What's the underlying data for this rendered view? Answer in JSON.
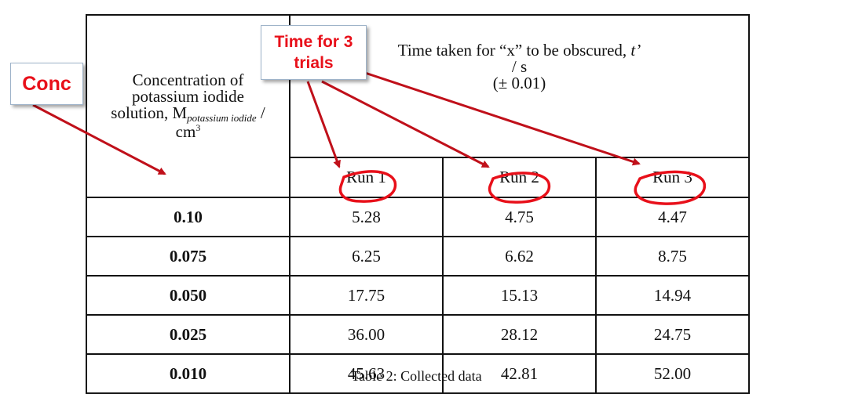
{
  "table": {
    "header": {
      "conc_line1": "Concentration of",
      "conc_line2": "potassium iodide",
      "conc_line3_pre": "solution, M",
      "conc_subscript": "potassium iodide",
      "conc_line3_post": " /",
      "conc_unit": "cm",
      "conc_unit_sup": "3",
      "time_line1_pre": "Time taken for “x” to be obscured, ",
      "time_symbol": "t’",
      "time_line2": "/ s",
      "time_line3": "(± 0.01)",
      "runs": [
        "Run 1",
        "Run 2",
        "Run 3"
      ]
    },
    "rows": [
      {
        "conc": "0.10",
        "runs": [
          "5.28",
          "4.75",
          "4.47"
        ]
      },
      {
        "conc": "0.075",
        "runs": [
          "6.25",
          "6.62",
          "8.75"
        ]
      },
      {
        "conc": "0.050",
        "runs": [
          "17.75",
          "15.13",
          "14.94"
        ]
      },
      {
        "conc": "0.025",
        "runs": [
          "36.00",
          "28.12",
          "24.75"
        ]
      },
      {
        "conc": "0.010",
        "runs": [
          "45.63",
          "42.81",
          "52.00"
        ]
      }
    ]
  },
  "caption": "Table 2: Collected data",
  "annotations": {
    "conc_label": "Conc",
    "time_label_line1": "Time for 3",
    "time_label_line2": "trials",
    "color": "#e8101a",
    "arrow_color": "#c0101a"
  }
}
